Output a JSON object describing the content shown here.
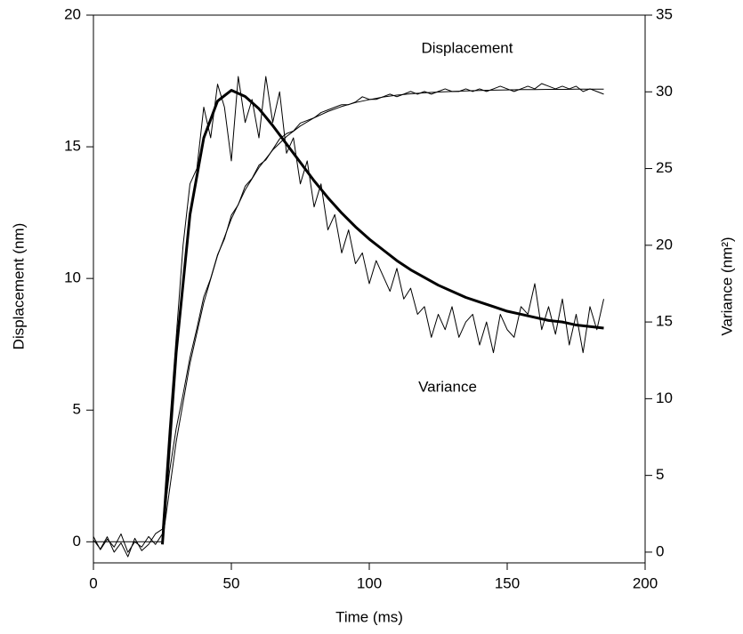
{
  "chart_data": {
    "type": "line",
    "xlabel": "Time (ms)",
    "ylabel": "Displacement (nm)",
    "y2label": "Variance (nm²)",
    "annotations": [
      "Displacement",
      "Variance"
    ],
    "xlim": [
      0,
      200
    ],
    "xticks": [
      0,
      50,
      100,
      150,
      200
    ],
    "ylim": [
      -0.8,
      20
    ],
    "yticks": [
      0,
      5,
      10,
      15,
      20
    ],
    "y2lim": [
      -0.7,
      35
    ],
    "y2ticks": [
      0,
      5,
      10,
      15,
      20,
      25,
      30,
      35
    ],
    "series": [
      {
        "color": "#000000",
        "width": 1,
        "axis": "y",
        "x": [
          0,
          2.5,
          5,
          7.5,
          10,
          12.5,
          15,
          17.5,
          20,
          22.5,
          25,
          27.5,
          30,
          32.5,
          35,
          37.5,
          40,
          42.5,
          45,
          47.5,
          50,
          52.5,
          55,
          57.5,
          60,
          62.5,
          65,
          67.5,
          70,
          72.5,
          75,
          77.5,
          80,
          82.5,
          85,
          87.5,
          90,
          92.5,
          95,
          97.5,
          100,
          102.5,
          105,
          107.5,
          110,
          112.5,
          115,
          117.5,
          120,
          122.5,
          125,
          127.5,
          130,
          132.5,
          135,
          137.5,
          140,
          142.5,
          145,
          147.5,
          150,
          152.5,
          155,
          157.5,
          160,
          162.5,
          165,
          167.5,
          170,
          172.5,
          175,
          177.5,
          180,
          182.5,
          185
        ],
        "values": [
          0.2,
          -0.3,
          0.1,
          -0.2,
          0.3,
          -0.4,
          0.0,
          -0.2,
          0.2,
          -0.1,
          0.3,
          2.6,
          4.3,
          5.6,
          7.0,
          8.1,
          9.3,
          10.0,
          10.9,
          11.5,
          12.4,
          12.8,
          13.5,
          13.8,
          14.3,
          14.5,
          14.9,
          15.3,
          15.5,
          15.6,
          15.9,
          16.0,
          16.1,
          16.3,
          16.4,
          16.5,
          16.6,
          16.6,
          16.7,
          16.9,
          16.8,
          16.8,
          16.9,
          17.0,
          16.9,
          17.0,
          17.1,
          17.0,
          17.1,
          17.0,
          17.1,
          17.2,
          17.1,
          17.1,
          17.2,
          17.1,
          17.2,
          17.1,
          17.2,
          17.3,
          17.2,
          17.1,
          17.2,
          17.3,
          17.2,
          17.4,
          17.3,
          17.2,
          17.3,
          17.2,
          17.3,
          17.1,
          17.2,
          17.1,
          17.0
        ]
      },
      {
        "color": "#000000",
        "width": 1,
        "axis": "y",
        "x": [
          0,
          25,
          30,
          35,
          40,
          45,
          50,
          55,
          60,
          65,
          70,
          75,
          80,
          85,
          90,
          95,
          100,
          105,
          110,
          115,
          120,
          125,
          130,
          135,
          140,
          145,
          150,
          155,
          160,
          165,
          170,
          175,
          180,
          185
        ],
        "values": [
          0,
          0,
          3.8,
          6.77,
          9.08,
          10.87,
          12.26,
          13.36,
          14.21,
          14.88,
          15.39,
          15.79,
          16.1,
          16.34,
          16.53,
          16.68,
          16.79,
          16.89,
          16.96,
          17.01,
          17.05,
          17.08,
          17.1,
          17.12,
          17.14,
          17.15,
          17.16,
          17.17,
          17.17,
          17.18,
          17.18,
          17.19,
          17.19,
          17.19
        ]
      },
      {
        "color": "#000000",
        "width": 1,
        "axis": "y2",
        "x": [
          0,
          2.5,
          5,
          7.5,
          10,
          12.5,
          15,
          17.5,
          20,
          22.5,
          25,
          27.5,
          30,
          32.5,
          35,
          37.5,
          40,
          42.5,
          45,
          47.5,
          50,
          52.5,
          55,
          57.5,
          60,
          62.5,
          65,
          67.5,
          70,
          72.5,
          75,
          77.5,
          80,
          82.5,
          85,
          87.5,
          90,
          92.5,
          95,
          97.5,
          100,
          102.5,
          105,
          107.5,
          110,
          112.5,
          115,
          117.5,
          120,
          122.5,
          125,
          127.5,
          130,
          132.5,
          135,
          137.5,
          140,
          142.5,
          145,
          147.5,
          150,
          152.5,
          155,
          157.5,
          160,
          162.5,
          165,
          167.5,
          170,
          172.5,
          175,
          177.5,
          180,
          182.5,
          185
        ],
        "values": [
          0.8,
          0.2,
          1.0,
          0.0,
          0.6,
          -0.3,
          0.9,
          0.1,
          0.5,
          1.2,
          1.5,
          8,
          14,
          20,
          24,
          25,
          29,
          27,
          30.5,
          29,
          25.5,
          31,
          28,
          29.5,
          27,
          31,
          28,
          30,
          26,
          27,
          24,
          25.5,
          22.5,
          24,
          21,
          22,
          19.5,
          21,
          18.8,
          19.5,
          17.5,
          19,
          18,
          17,
          18.5,
          16.5,
          17.2,
          15.5,
          16,
          14,
          15.5,
          14.5,
          16,
          14,
          15,
          15.5,
          13.5,
          15,
          13,
          15.5,
          14.5,
          14,
          16,
          15.5,
          17.5,
          14.5,
          16,
          14.2,
          16.5,
          13.5,
          15.5,
          13,
          16,
          14.5,
          16.5
        ]
      },
      {
        "color": "#000000",
        "width": 3,
        "axis": "y2",
        "x": [
          25,
          30,
          35,
          40,
          45,
          50,
          55,
          60,
          65,
          70,
          75,
          80,
          85,
          90,
          95,
          100,
          105,
          110,
          115,
          120,
          125,
          130,
          135,
          140,
          145,
          150,
          155,
          160,
          165,
          170,
          175,
          180,
          185
        ],
        "values": [
          0.5,
          13,
          22,
          27,
          29.4,
          30.1,
          29.7,
          28.9,
          27.8,
          26.6,
          25.4,
          24.2,
          23.1,
          22.1,
          21.2,
          20.4,
          19.7,
          19.0,
          18.4,
          17.9,
          17.4,
          17.0,
          16.6,
          16.3,
          16.0,
          15.7,
          15.5,
          15.3,
          15.1,
          15.0,
          14.8,
          14.7,
          14.6
        ]
      }
    ]
  }
}
